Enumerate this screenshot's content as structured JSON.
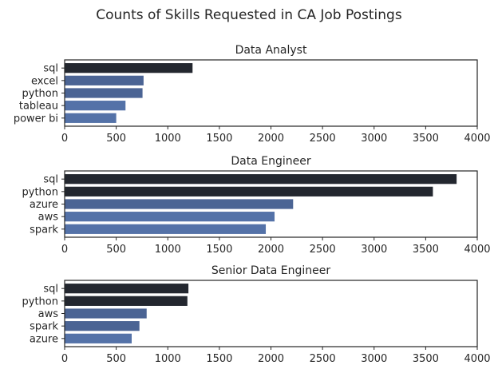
{
  "figure": {
    "title": "Counts of Skills Requested in CA Job Postings"
  },
  "colors": {
    "dark": "#23272f",
    "mid_dark": "#2c3a55",
    "mid": "#4b6494",
    "light": "#5472a8",
    "axis": "#262626",
    "background": "#ffffff"
  },
  "chart_data": [
    {
      "type": "bar",
      "orientation": "horizontal",
      "title": "Data Analyst",
      "categories": [
        "sql",
        "excel",
        "python",
        "tableau",
        "power bi"
      ],
      "values": [
        1240,
        765,
        755,
        590,
        500
      ],
      "xlim": [
        0,
        4000
      ],
      "xticks": [
        0,
        500,
        1000,
        1500,
        2000,
        2500,
        3000,
        3500,
        4000
      ],
      "xlabel": "",
      "ylabel": "",
      "grid": false,
      "legend": false
    },
    {
      "type": "bar",
      "orientation": "horizontal",
      "title": "Data Engineer",
      "categories": [
        "sql",
        "python",
        "azure",
        "aws",
        "spark"
      ],
      "values": [
        3800,
        3570,
        2215,
        2035,
        1950
      ],
      "xlim": [
        0,
        4000
      ],
      "xticks": [
        0,
        500,
        1000,
        1500,
        2000,
        2500,
        3000,
        3500,
        4000
      ],
      "xlabel": "",
      "ylabel": "",
      "grid": false,
      "legend": false
    },
    {
      "type": "bar",
      "orientation": "horizontal",
      "title": "Senior Data Engineer",
      "categories": [
        "sql",
        "python",
        "aws",
        "spark",
        "azure"
      ],
      "values": [
        1200,
        1190,
        795,
        725,
        650
      ],
      "xlim": [
        0,
        4000
      ],
      "xticks": [
        0,
        500,
        1000,
        1500,
        2000,
        2500,
        3000,
        3500,
        4000
      ],
      "xlabel": "",
      "ylabel": "",
      "grid": false,
      "legend": false
    }
  ]
}
